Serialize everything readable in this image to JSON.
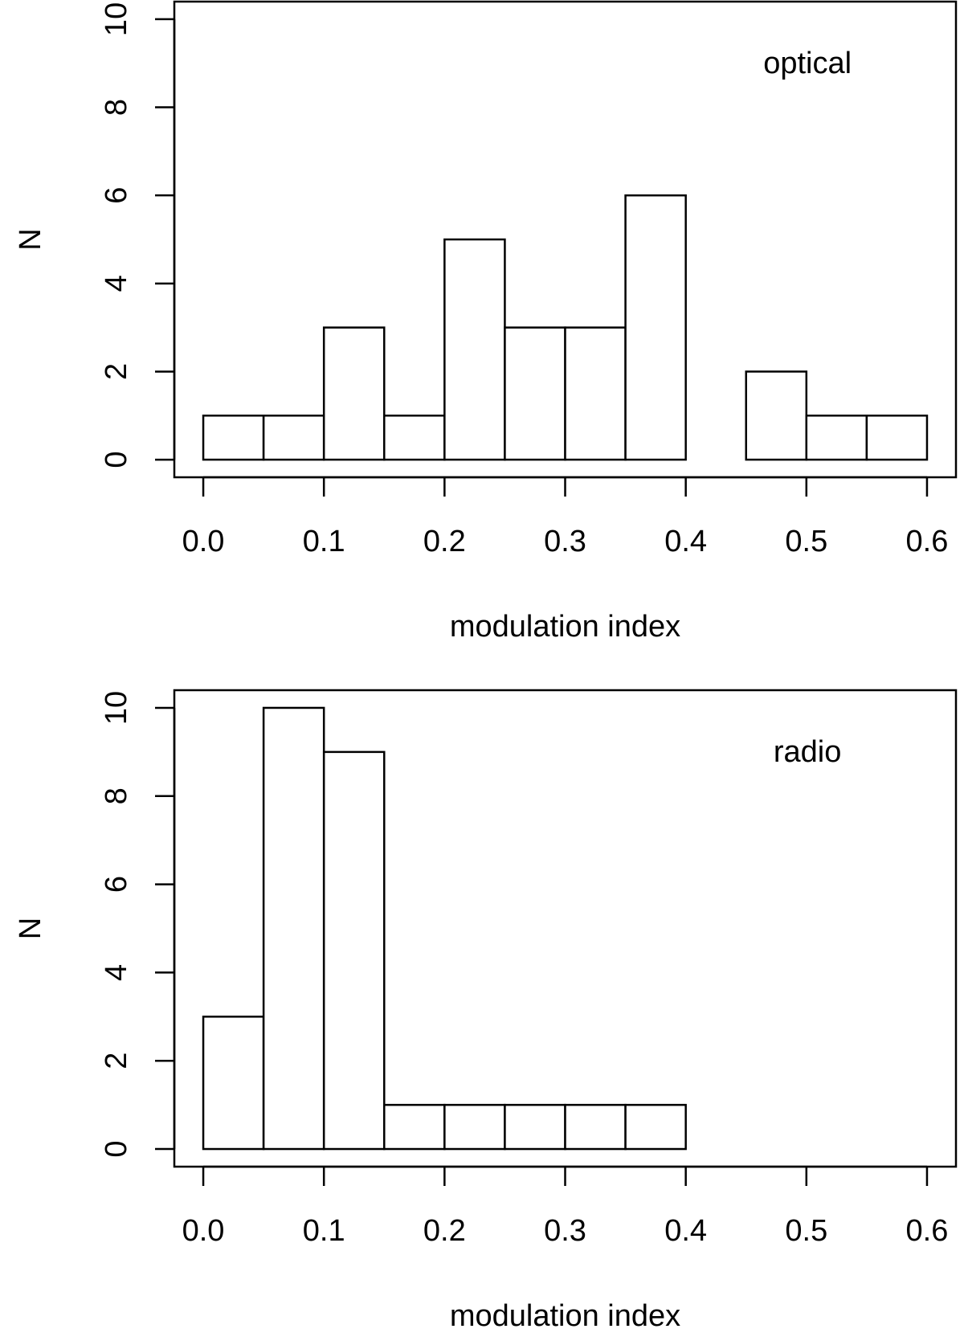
{
  "chart_data": [
    {
      "type": "histogram",
      "annotation": "optical",
      "x_label": "modulation index",
      "y_label": "N",
      "bins": [
        0,
        0.05,
        0.1,
        0.15,
        0.2,
        0.25,
        0.3,
        0.35,
        0.4,
        0.45,
        0.5,
        0.55,
        0.6
      ],
      "values": [
        1,
        1,
        3,
        1,
        5,
        3,
        3,
        6,
        0,
        2,
        1,
        1
      ],
      "color": "#ffffff",
      "xlim": [
        -0.024,
        0.624
      ],
      "ylim": [
        -0.4,
        10.4
      ],
      "xticks": [
        {
          "value": 0,
          "label": "0.0"
        },
        0.1,
        0.2,
        0.3,
        0.4,
        0.5,
        0.6
      ],
      "yticks": [
        0,
        2,
        4,
        6,
        8,
        10
      ]
    },
    {
      "type": "histogram",
      "annotation": "radio",
      "x_label": "modulation index",
      "y_label": "N",
      "bins": [
        0,
        0.05,
        0.1,
        0.15,
        0.2,
        0.25,
        0.3,
        0.35,
        0.4,
        0.45,
        0.5,
        0.55,
        0.6
      ],
      "values": [
        3,
        10,
        9,
        1,
        1,
        1,
        1,
        1,
        0,
        0,
        0,
        0
      ],
      "color": "#ffffff",
      "xlim": [
        -0.024,
        0.624
      ],
      "ylim": [
        -0.4,
        10.4
      ],
      "xticks": [
        {
          "value": 0,
          "label": "0.0"
        },
        0.1,
        0.2,
        0.3,
        0.4,
        0.5,
        0.6
      ],
      "yticks": [
        0,
        2,
        4,
        6,
        8,
        10
      ]
    }
  ]
}
